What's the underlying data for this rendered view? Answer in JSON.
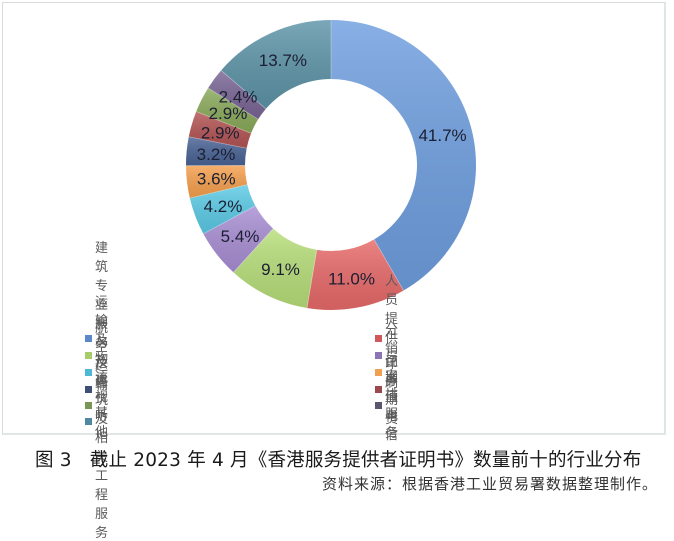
{
  "chart_data": {
    "type": "pie",
    "subtype": "donut",
    "title": "截止 2023 年 4 月《香港服务提供者证明书》数量前十的行业分布",
    "figure_number": "图 3",
    "start_angle": "12 o'clock, clockwise",
    "categories": [
      "运输及物流",
      "分销",
      "航空运输",
      "人员提供与安排服务",
      "广告",
      "印刷",
      "建筑专业服务及建筑及相关工程服务",
      "证券期货",
      "视听",
      "增值电信",
      "其他"
    ],
    "values": [
      41.7,
      11.0,
      9.1,
      5.4,
      4.2,
      3.6,
      3.2,
      2.9,
      2.9,
      2.4,
      13.7
    ],
    "labels": [
      "41.7%",
      "11.0%",
      "9.1%",
      "5.4%",
      "4.2%",
      "3.6%",
      "3.2%",
      "2.9%",
      "2.9%",
      "2.4%",
      "13.7%"
    ],
    "colors": [
      "#6f9fe0",
      "#e86a6a",
      "#b8df7a",
      "#a98fd4",
      "#5ccbe6",
      "#f6a04e",
      "#4a6496",
      "#b45454",
      "#8aaa5a",
      "#7a6696",
      "#5e95a8"
    ],
    "legend_position": "bottom, two columns",
    "unit": "%"
  },
  "legend": {
    "left": [
      {
        "label": "运输及物流",
        "color": "#5b88c8"
      },
      {
        "label": "航空运输",
        "color": "#a8cc6a"
      },
      {
        "label": "广告",
        "color": "#4fb8d6"
      },
      {
        "label": "建筑专业服务及建筑及相关工程服务",
        "color": "#3f4f78"
      },
      {
        "label": "视听",
        "color": "#7a9656"
      },
      {
        "label": "其他",
        "color": "#4f86a0"
      }
    ],
    "right": [
      {
        "label": "分销",
        "color": "#d0575a"
      },
      {
        "label": "人员提供与安排服务",
        "color": "#8c74b8"
      },
      {
        "label": "印刷",
        "color": "#f0a050"
      },
      {
        "label": "证券期货",
        "color": "#9a4a4e"
      },
      {
        "label": "增值电信",
        "color": "#5a5670"
      }
    ]
  },
  "caption": {
    "figure_number": "图 3",
    "title": "截止 2023 年 4 月《香港服务提供者证明书》数量前十的行业分布"
  },
  "source": "资料来源：根据香港工业贸易署数据整理制作。"
}
